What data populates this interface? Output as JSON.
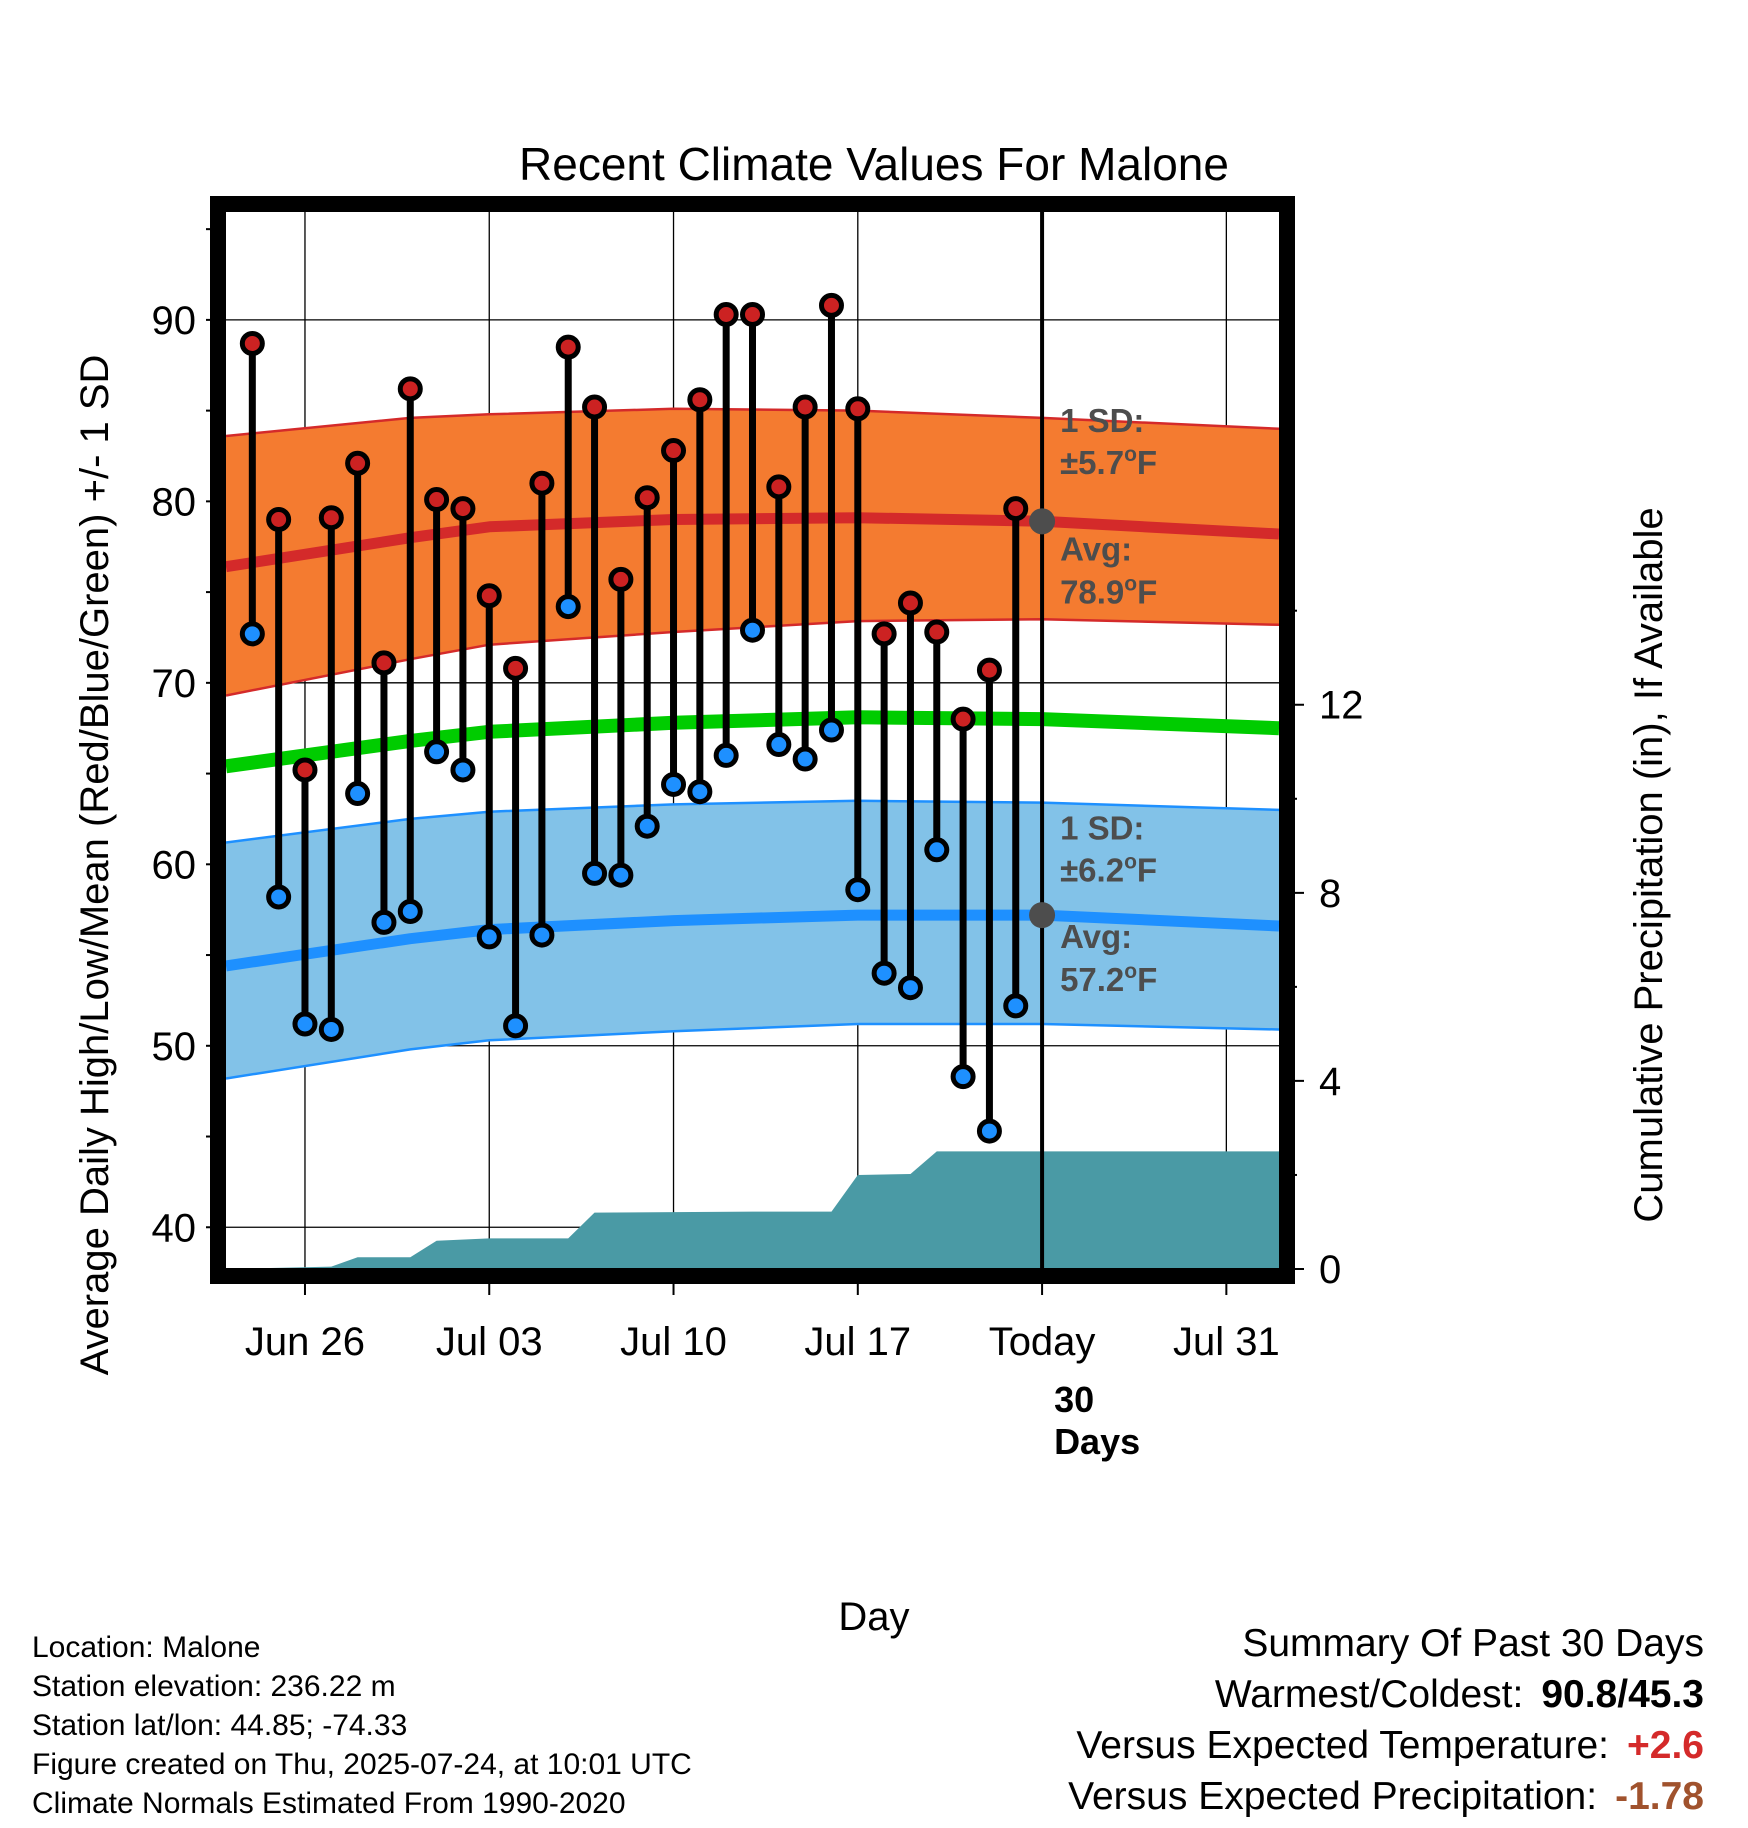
{
  "chart_data": {
    "type": "line",
    "title": "Recent Climate Values For Malone",
    "xlabel": "Day",
    "ylabel": "Average Daily High/Low/Mean (Red/Blue/Green) +/- 1 SD",
    "y2label": "Cumulative Precipitation (in), If Available",
    "xlim": [
      "2025-06-23",
      "2025-08-02"
    ],
    "ylim": [
      37.7,
      96
    ],
    "y2lim": [
      0,
      22.5
    ],
    "x_ticks": [
      {
        "date": "2025-06-26",
        "label": "Jun 26"
      },
      {
        "date": "2025-07-03",
        "label": "Jul 03"
      },
      {
        "date": "2025-07-10",
        "label": "Jul 10"
      },
      {
        "date": "2025-07-17",
        "label": "Jul 17"
      },
      {
        "date": "2025-07-24",
        "label": "Today"
      },
      {
        "date": "2025-07-31",
        "label": "Jul 31"
      }
    ],
    "y_ticks": [
      40,
      50,
      60,
      70,
      80,
      90
    ],
    "y2_ticks": [
      0,
      4,
      8,
      12
    ],
    "today": "2025-07-24",
    "colors": {
      "high_band": "#f47b30",
      "high_line": "#d42a2a",
      "low_band": "#82c2e8",
      "low_line": "#1e90ff",
      "mean_line": "#00cc00",
      "precip": "#4a9aa5",
      "high_dot": "#cc2222",
      "low_dot": "#1e90ff",
      "today_dot": "#4d4d4d"
    },
    "normals": {
      "dates": [
        "2025-06-23",
        "2025-06-30",
        "2025-07-03",
        "2025-07-10",
        "2025-07-17",
        "2025-07-24",
        "2025-08-02"
      ],
      "high_mean": [
        76.4,
        78.0,
        78.6,
        79.0,
        79.1,
        78.9,
        78.2
      ],
      "high_upper": [
        83.6,
        84.6,
        84.8,
        85.1,
        85.0,
        84.6,
        84.0
      ],
      "high_lower": [
        69.3,
        71.3,
        72.1,
        72.8,
        73.4,
        73.5,
        73.2
      ],
      "mean": [
        65.4,
        66.8,
        67.3,
        67.8,
        68.1,
        68.0,
        67.5
      ],
      "low_mean": [
        54.4,
        55.9,
        56.4,
        56.9,
        57.2,
        57.2,
        56.6
      ],
      "low_upper": [
        61.2,
        62.5,
        62.9,
        63.3,
        63.5,
        63.4,
        63.0
      ],
      "low_lower": [
        48.2,
        49.8,
        50.3,
        50.8,
        51.2,
        51.2,
        50.9
      ]
    },
    "observed": {
      "dates": [
        "2025-06-24",
        "2025-06-25",
        "2025-06-26",
        "2025-06-27",
        "2025-06-28",
        "2025-06-29",
        "2025-06-30",
        "2025-07-01",
        "2025-07-02",
        "2025-07-03",
        "2025-07-04",
        "2025-07-05",
        "2025-07-06",
        "2025-07-07",
        "2025-07-08",
        "2025-07-09",
        "2025-07-10",
        "2025-07-11",
        "2025-07-12",
        "2025-07-13",
        "2025-07-14",
        "2025-07-15",
        "2025-07-16",
        "2025-07-17",
        "2025-07-18",
        "2025-07-19",
        "2025-07-20",
        "2025-07-21",
        "2025-07-22",
        "2025-07-23"
      ],
      "high": [
        88.7,
        79.0,
        65.2,
        79.1,
        82.1,
        71.1,
        86.2,
        80.1,
        79.6,
        74.8,
        70.8,
        81.0,
        88.5,
        85.2,
        75.7,
        80.2,
        82.8,
        85.6,
        90.3,
        90.3,
        80.8,
        85.2,
        90.8,
        85.1,
        72.7,
        74.4,
        72.8,
        68.0,
        70.7,
        79.6
      ],
      "low": [
        72.7,
        58.2,
        51.2,
        50.9,
        63.9,
        56.8,
        57.4,
        66.2,
        65.2,
        56.0,
        51.1,
        56.1,
        74.2,
        59.5,
        59.4,
        62.1,
        64.4,
        64.0,
        66.0,
        72.9,
        66.6,
        65.8,
        67.4,
        58.6,
        54.0,
        53.2,
        60.8,
        48.3,
        45.3,
        52.2
      ]
    },
    "precip_cumulative": {
      "dates": [
        "2025-06-23",
        "2025-06-27",
        "2025-06-28",
        "2025-06-30",
        "2025-07-01",
        "2025-07-03",
        "2025-07-06",
        "2025-07-07",
        "2025-07-13",
        "2025-07-16",
        "2025-07-17",
        "2025-07-19",
        "2025-07-20",
        "2025-07-24",
        "2025-08-02"
      ],
      "values": [
        0.0,
        0.05,
        0.25,
        0.25,
        0.6,
        0.65,
        0.65,
        1.2,
        1.22,
        1.22,
        2.0,
        2.02,
        2.5,
        2.5,
        2.5
      ]
    },
    "annotations": {
      "high_sd": "±5.7",
      "high_avg": "78.9",
      "low_sd": "±6.2",
      "low_avg": "57.2",
      "sd_label": "1 SD:",
      "avg_label": "Avg:",
      "unit_super": "o",
      "unit_letter": "F",
      "days_number": "30",
      "days_word": "Days"
    }
  },
  "footer": {
    "location": "Location: Malone",
    "elevation": "Station elevation: 236.22 m",
    "latlon": "Station lat/lon: 44.85; -74.33",
    "created": "Figure created on Thu, 2025-07-24, at 10:01 UTC",
    "normals": "Climate Normals Estimated From 1990-2020"
  },
  "summary": {
    "title": "Summary Of Past 30 Days",
    "warm_cold_label": "Warmest/Coldest:",
    "warm_cold_value": "90.8/45.3",
    "temp_label": "Versus Expected Temperature:",
    "temp_value": "+2.6",
    "temp_color": "#d42a2a",
    "precip_label": "Versus Expected Precipitation:",
    "precip_value": "-1.78",
    "precip_color": "#a0522d"
  }
}
